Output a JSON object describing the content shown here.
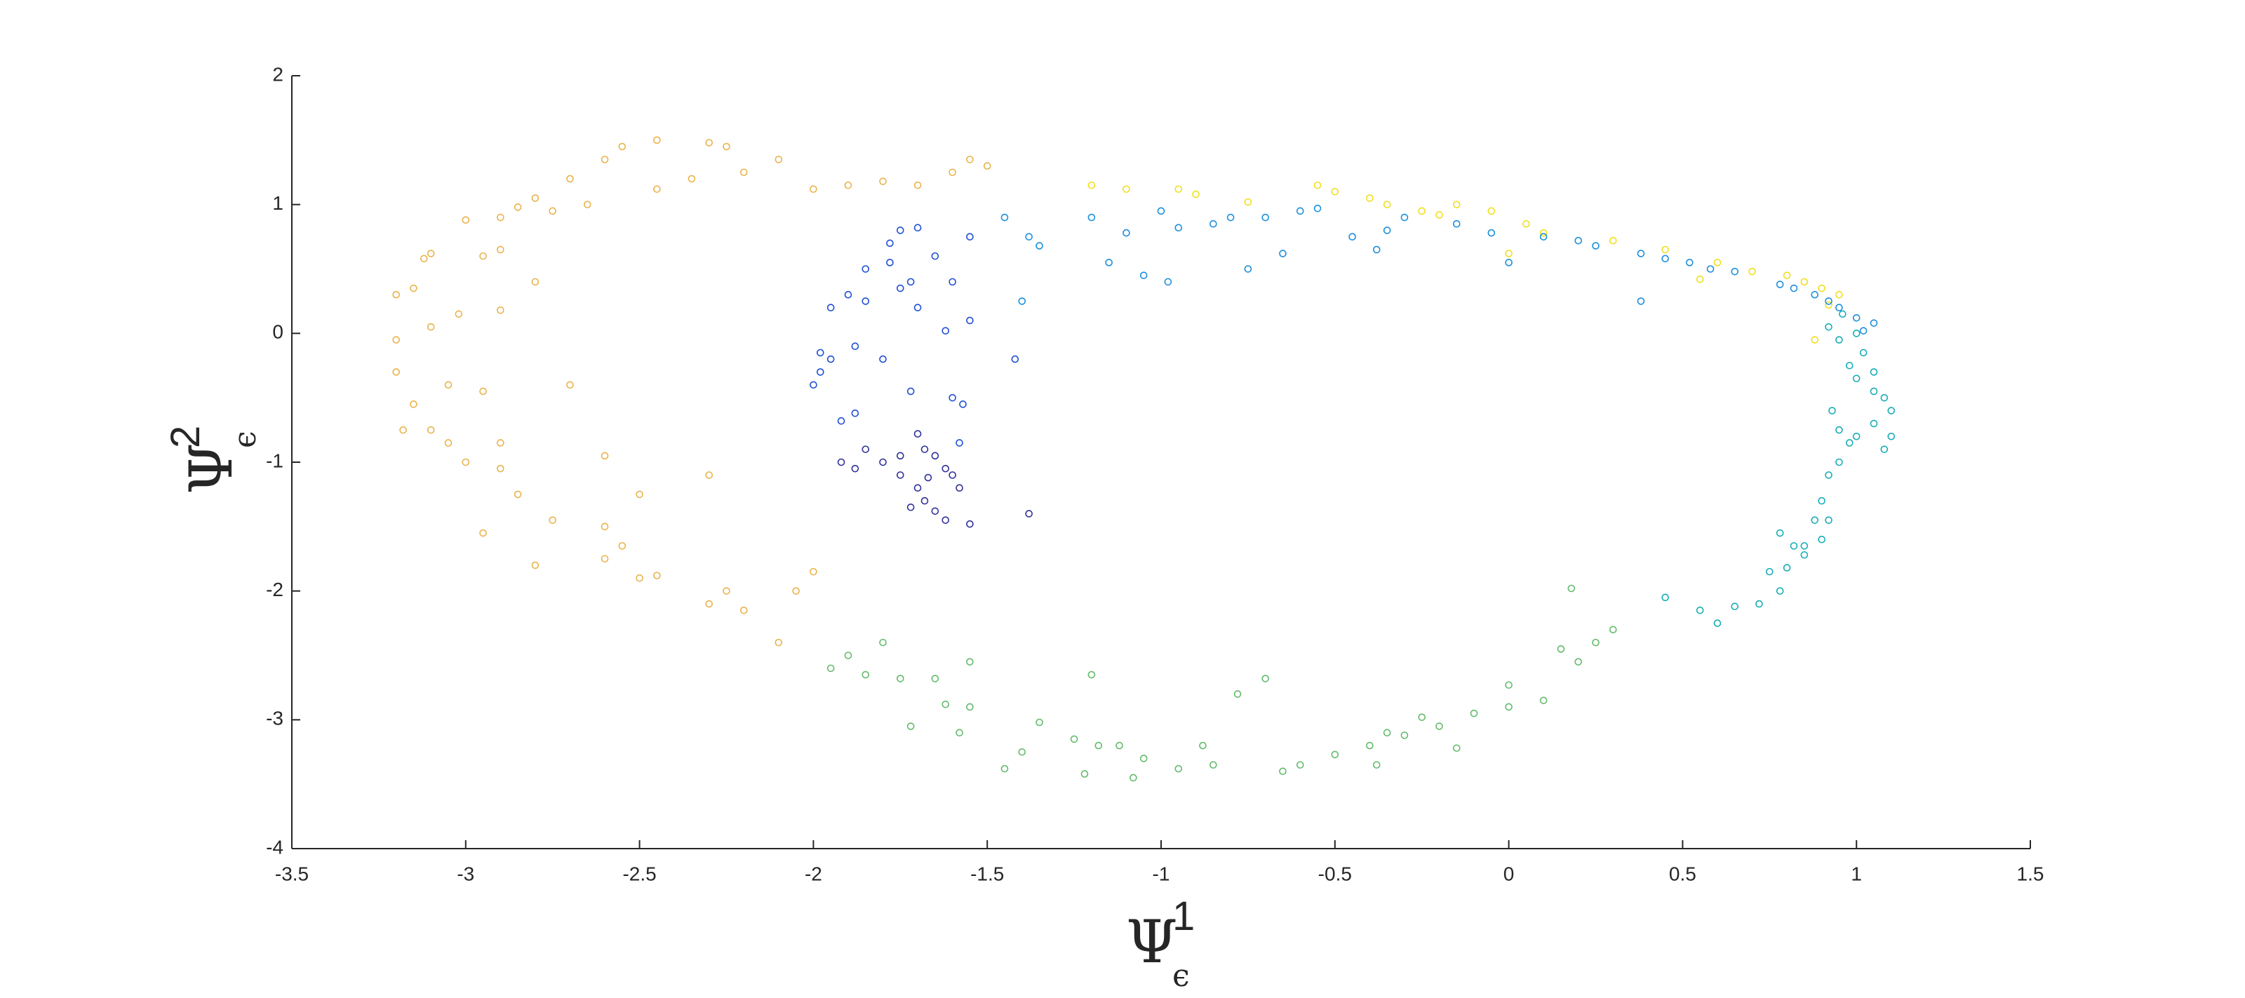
{
  "chart_data": {
    "type": "scatter",
    "xlabel": {
      "symbol": "Ψ",
      "superscript": "1",
      "subscript": "ϵ"
    },
    "ylabel": {
      "symbol": "Ψ",
      "superscript": "2",
      "subscript": "ϵ"
    },
    "xlim": [
      -3.5,
      1.5
    ],
    "xticks": [
      -3.5,
      -3,
      -2.5,
      -2,
      -1.5,
      -1,
      -0.5,
      0,
      0.5,
      1,
      1.5
    ],
    "ylim": [
      -4,
      2
    ],
    "yticks": [
      -4,
      -3,
      -2,
      -1,
      0,
      1,
      2
    ],
    "series": [
      {
        "color": "#e9b34c",
        "x": [
          -2.45,
          -2.3,
          -2.25,
          -2.55,
          -2.6,
          -2.7,
          -2.8,
          -2.85,
          -2.9,
          -3.0,
          -3.1,
          -3.12,
          -3.2,
          -3.15,
          -3.2,
          -3.15,
          -3.18,
          -3.1,
          -3.05,
          -3.0,
          -2.9,
          -2.85,
          -2.95,
          -2.8,
          -2.75,
          -2.6,
          -2.55,
          -2.5,
          -2.45,
          -2.3,
          -2.25,
          -2.2,
          -2.05,
          -2.1,
          -2.0,
          -2.2,
          -2.1,
          -2.0,
          -1.9,
          -1.8,
          -1.7,
          -1.6,
          -1.55,
          -1.5,
          -2.35,
          -2.45,
          -2.65,
          -2.75,
          -2.9,
          -2.95,
          -3.02,
          -3.1,
          -3.05,
          -2.95,
          -2.9,
          -2.7,
          -2.6,
          -2.5,
          -2.3,
          -2.8,
          -2.9,
          -3.2,
          -2.6
        ],
        "y": [
          1.5,
          1.48,
          1.45,
          1.45,
          1.35,
          1.2,
          1.05,
          0.98,
          0.9,
          0.88,
          0.62,
          0.58,
          0.3,
          0.35,
          -0.3,
          -0.55,
          -0.75,
          -0.75,
          -0.85,
          -1.0,
          -1.05,
          -1.25,
          -1.55,
          -1.8,
          -1.45,
          -1.5,
          -1.65,
          -1.9,
          -1.88,
          -2.1,
          -2.0,
          -2.15,
          -2.0,
          -2.4,
          -1.85,
          1.25,
          1.35,
          1.12,
          1.15,
          1.18,
          1.15,
          1.25,
          1.35,
          1.3,
          1.2,
          1.12,
          1.0,
          0.95,
          0.65,
          0.6,
          0.15,
          0.05,
          -0.4,
          -0.45,
          -0.85,
          -0.4,
          -0.95,
          -1.25,
          -1.1,
          0.4,
          0.18,
          -0.05,
          -1.75
        ]
      },
      {
        "color": "#f0df1e",
        "x": [
          -1.2,
          -1.1,
          -0.95,
          -0.9,
          -0.75,
          -0.55,
          -0.5,
          -0.4,
          -0.35,
          -0.25,
          -0.15,
          -0.05,
          0.05,
          0.1,
          0.3,
          0.45,
          0.6,
          0.7,
          0.8,
          0.85,
          0.9,
          0.95,
          0.92,
          0.88,
          -0.2,
          0.0,
          0.55
        ],
        "y": [
          1.15,
          1.12,
          1.12,
          1.08,
          1.02,
          1.15,
          1.1,
          1.05,
          1.0,
          0.95,
          1.0,
          0.95,
          0.85,
          0.78,
          0.72,
          0.65,
          0.55,
          0.48,
          0.45,
          0.4,
          0.35,
          0.3,
          0.22,
          -0.05,
          0.92,
          0.62,
          0.42
        ]
      },
      {
        "color": "#1c8fdc",
        "x": [
          -1.45,
          -1.38,
          -1.35,
          -1.2,
          -1.1,
          -1.0,
          -0.95,
          -0.85,
          -0.8,
          -0.7,
          -0.6,
          -0.55,
          -0.45,
          -0.38,
          -0.35,
          -0.3,
          -0.15,
          -0.05,
          0.0,
          0.1,
          0.2,
          0.25,
          0.38,
          0.45,
          0.52,
          0.58,
          0.65,
          0.78,
          0.82,
          0.88,
          0.92,
          0.95,
          1.0,
          1.05,
          1.02,
          0.38,
          -1.15,
          -1.05,
          -0.98,
          -0.75,
          -0.65,
          -1.4
        ],
        "y": [
          0.9,
          0.75,
          0.68,
          0.9,
          0.78,
          0.95,
          0.82,
          0.85,
          0.9,
          0.9,
          0.95,
          0.97,
          0.75,
          0.65,
          0.8,
          0.9,
          0.85,
          0.78,
          0.55,
          0.75,
          0.72,
          0.68,
          0.62,
          0.58,
          0.55,
          0.5,
          0.48,
          0.38,
          0.35,
          0.3,
          0.25,
          0.2,
          0.12,
          0.08,
          0.02,
          0.25,
          0.55,
          0.45,
          0.4,
          0.5,
          0.62,
          0.25
        ]
      },
      {
        "color": "#1f4fd6",
        "x": [
          -1.75,
          -1.7,
          -1.78,
          -1.65,
          -1.55,
          -1.85,
          -1.78,
          -1.9,
          -1.85,
          -1.95,
          -1.75,
          -1.72,
          -1.7,
          -1.55,
          -1.95,
          -1.98,
          -2.0,
          -1.98,
          -1.88,
          -1.8,
          -1.72,
          -1.6,
          -1.57,
          -1.88,
          -1.92,
          -1.58,
          -1.42,
          -1.6,
          -1.62
        ],
        "y": [
          0.8,
          0.82,
          0.7,
          0.6,
          0.75,
          0.5,
          0.55,
          0.3,
          0.25,
          0.2,
          0.35,
          0.4,
          0.2,
          0.1,
          -0.2,
          -0.3,
          -0.4,
          -0.15,
          -0.1,
          -0.2,
          -0.45,
          -0.5,
          -0.55,
          -0.62,
          -0.68,
          -0.85,
          -0.2,
          0.4,
          0.02
        ]
      },
      {
        "color": "#30309a",
        "x": [
          -1.92,
          -1.88,
          -1.8,
          -1.75,
          -1.7,
          -1.68,
          -1.65,
          -1.62,
          -1.7,
          -1.72,
          -1.68,
          -1.65,
          -1.62,
          -1.58,
          -1.55,
          -1.75,
          -1.38,
          -1.85,
          -1.6,
          -1.67
        ],
        "y": [
          -1.0,
          -1.05,
          -1.0,
          -0.95,
          -0.78,
          -0.9,
          -0.95,
          -1.05,
          -1.2,
          -1.35,
          -1.3,
          -1.38,
          -1.45,
          -1.2,
          -1.48,
          -1.1,
          -1.4,
          -0.9,
          -1.1,
          -1.12
        ]
      },
      {
        "color": "#63bb6c",
        "x": [
          -1.95,
          -1.9,
          -1.85,
          -1.8,
          -1.75,
          -1.65,
          -1.62,
          -1.72,
          -1.55,
          -1.55,
          -1.58,
          -1.45,
          -1.4,
          -1.35,
          -1.25,
          -1.2,
          -1.18,
          -1.22,
          -1.12,
          -1.08,
          -1.05,
          -0.95,
          -0.88,
          -0.85,
          -0.78,
          -0.65,
          -0.6,
          -0.5,
          -0.38,
          -0.35,
          -0.3,
          -0.25,
          -0.2,
          -0.15,
          -0.1,
          0.0,
          0.0,
          0.1,
          0.15,
          0.2,
          0.25,
          0.3,
          0.18,
          -0.7,
          -0.4
        ],
        "y": [
          -2.6,
          -2.5,
          -2.65,
          -2.4,
          -2.68,
          -2.68,
          -2.88,
          -3.05,
          -2.55,
          -2.9,
          -3.1,
          -3.38,
          -3.25,
          -3.02,
          -3.15,
          -2.65,
          -3.2,
          -3.42,
          -3.2,
          -3.45,
          -3.3,
          -3.38,
          -3.2,
          -3.35,
          -2.8,
          -3.4,
          -3.35,
          -3.27,
          -3.35,
          -3.1,
          -3.12,
          -2.98,
          -3.05,
          -3.22,
          -2.95,
          -2.9,
          -2.73,
          -2.85,
          -2.45,
          -2.55,
          -2.4,
          -2.3,
          -1.98,
          -2.68,
          -3.2
        ]
      },
      {
        "color": "#17adb8",
        "x": [
          0.45,
          0.55,
          0.6,
          0.65,
          0.72,
          0.75,
          0.78,
          0.8,
          0.82,
          0.85,
          0.9,
          0.92,
          0.9,
          0.92,
          0.95,
          0.98,
          1.0,
          0.95,
          1.05,
          1.1,
          1.08,
          1.05,
          1.0,
          0.98,
          1.02,
          0.95,
          0.92,
          1.0,
          1.08,
          1.1,
          0.88,
          0.85,
          0.78,
          0.93,
          1.05,
          0.96
        ],
        "y": [
          -2.05,
          -2.15,
          -2.25,
          -2.12,
          -2.1,
          -1.85,
          -2.0,
          -1.82,
          -1.65,
          -1.72,
          -1.6,
          -1.45,
          -1.3,
          -1.1,
          -1.0,
          -0.85,
          -0.8,
          -0.75,
          -0.7,
          -0.6,
          -0.5,
          -0.45,
          -0.35,
          -0.25,
          -0.15,
          -0.05,
          0.05,
          0.0,
          -0.9,
          -0.8,
          -1.45,
          -1.65,
          -1.55,
          -0.6,
          -0.3,
          0.15
        ]
      }
    ]
  }
}
